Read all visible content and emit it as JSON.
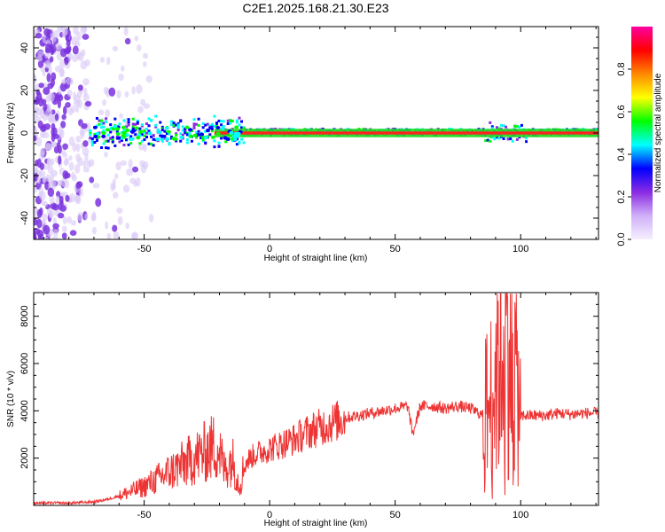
{
  "title": "C2E1.2025.168.21.30.E23",
  "chart_data": [
    {
      "type": "heatmap",
      "xlabel": "Height of straight line (km)",
      "ylabel": "Frequency (Hz)",
      "xlim": [
        -94,
        131
      ],
      "ylim": [
        -50,
        50
      ],
      "x_ticks": [
        -50,
        0,
        50,
        100
      ],
      "x_tick_labels": [
        "-50",
        "0",
        "50",
        "100"
      ],
      "y_ticks": [
        -40,
        -20,
        0,
        20,
        40
      ],
      "y_tick_labels": [
        "-40",
        "-20",
        "0",
        "20",
        "40"
      ],
      "colorbar": {
        "label": "Normalized spectral amplitude",
        "range": [
          0,
          1
        ],
        "ticks": [
          0.0,
          0.2,
          0.4,
          0.6,
          0.8
        ],
        "tick_labels": [
          "0.0",
          "0.2",
          "0.4",
          "0.6",
          "0.8"
        ],
        "colormap": [
          "#f5f0ff",
          "#d0b0f8",
          "#8a2be2",
          "#0000ff",
          "#00ffff",
          "#00ff00",
          "#ffff00",
          "#ff8800",
          "#ff0000",
          "#ff00a0"
        ]
      },
      "signal_band": {
        "center_hz": 0,
        "noise_region_x": [
          -94,
          -72
        ],
        "noise_color": "#7a33dd",
        "strong_line_x": [
          -22,
          131
        ],
        "strong_line_color": "#ff2222"
      }
    },
    {
      "type": "line",
      "xlabel": "Height of straight line (km)",
      "ylabel": "SNR (10 * v/v)",
      "xlim": [
        -94,
        131
      ],
      "ylim": [
        0,
        9000
      ],
      "x_ticks": [
        -50,
        0,
        50,
        100
      ],
      "x_tick_labels": [
        "-50",
        "0",
        "50",
        "100"
      ],
      "y_ticks": [
        2000,
        4000,
        6000,
        8000
      ],
      "y_tick_labels": [
        "2000",
        "4000",
        "6000",
        "8000"
      ],
      "color": "#ee3333",
      "series": [
        {
          "x": [
            -94,
            -80,
            -70,
            -65,
            -60,
            -55,
            -50,
            -45,
            -40,
            -35,
            -30,
            -25,
            -22,
            -20,
            -18,
            -15,
            -12,
            -10,
            -8,
            -5,
            0,
            5,
            10,
            15,
            20,
            25,
            30,
            35,
            40,
            45,
            50,
            55,
            57,
            60,
            65,
            70,
            75,
            80,
            85,
            88,
            90,
            92,
            95,
            98,
            100,
            102,
            105,
            110,
            115,
            120,
            125,
            131
          ],
          "y": [
            100,
            100,
            150,
            250,
            400,
            600,
            800,
            1100,
            1400,
            1700,
            2000,
            2300,
            2500,
            2300,
            1500,
            2000,
            800,
            1700,
            2000,
            2200,
            2400,
            2600,
            2800,
            3100,
            3300,
            3500,
            3700,
            3800,
            3900,
            4000,
            4100,
            4200,
            3000,
            4200,
            4200,
            4100,
            4200,
            4100,
            3800,
            4500,
            5500,
            6500,
            7000,
            5500,
            3800,
            3800,
            3800,
            3800,
            3900,
            3850,
            3900,
            3900
          ]
        }
      ]
    }
  ]
}
